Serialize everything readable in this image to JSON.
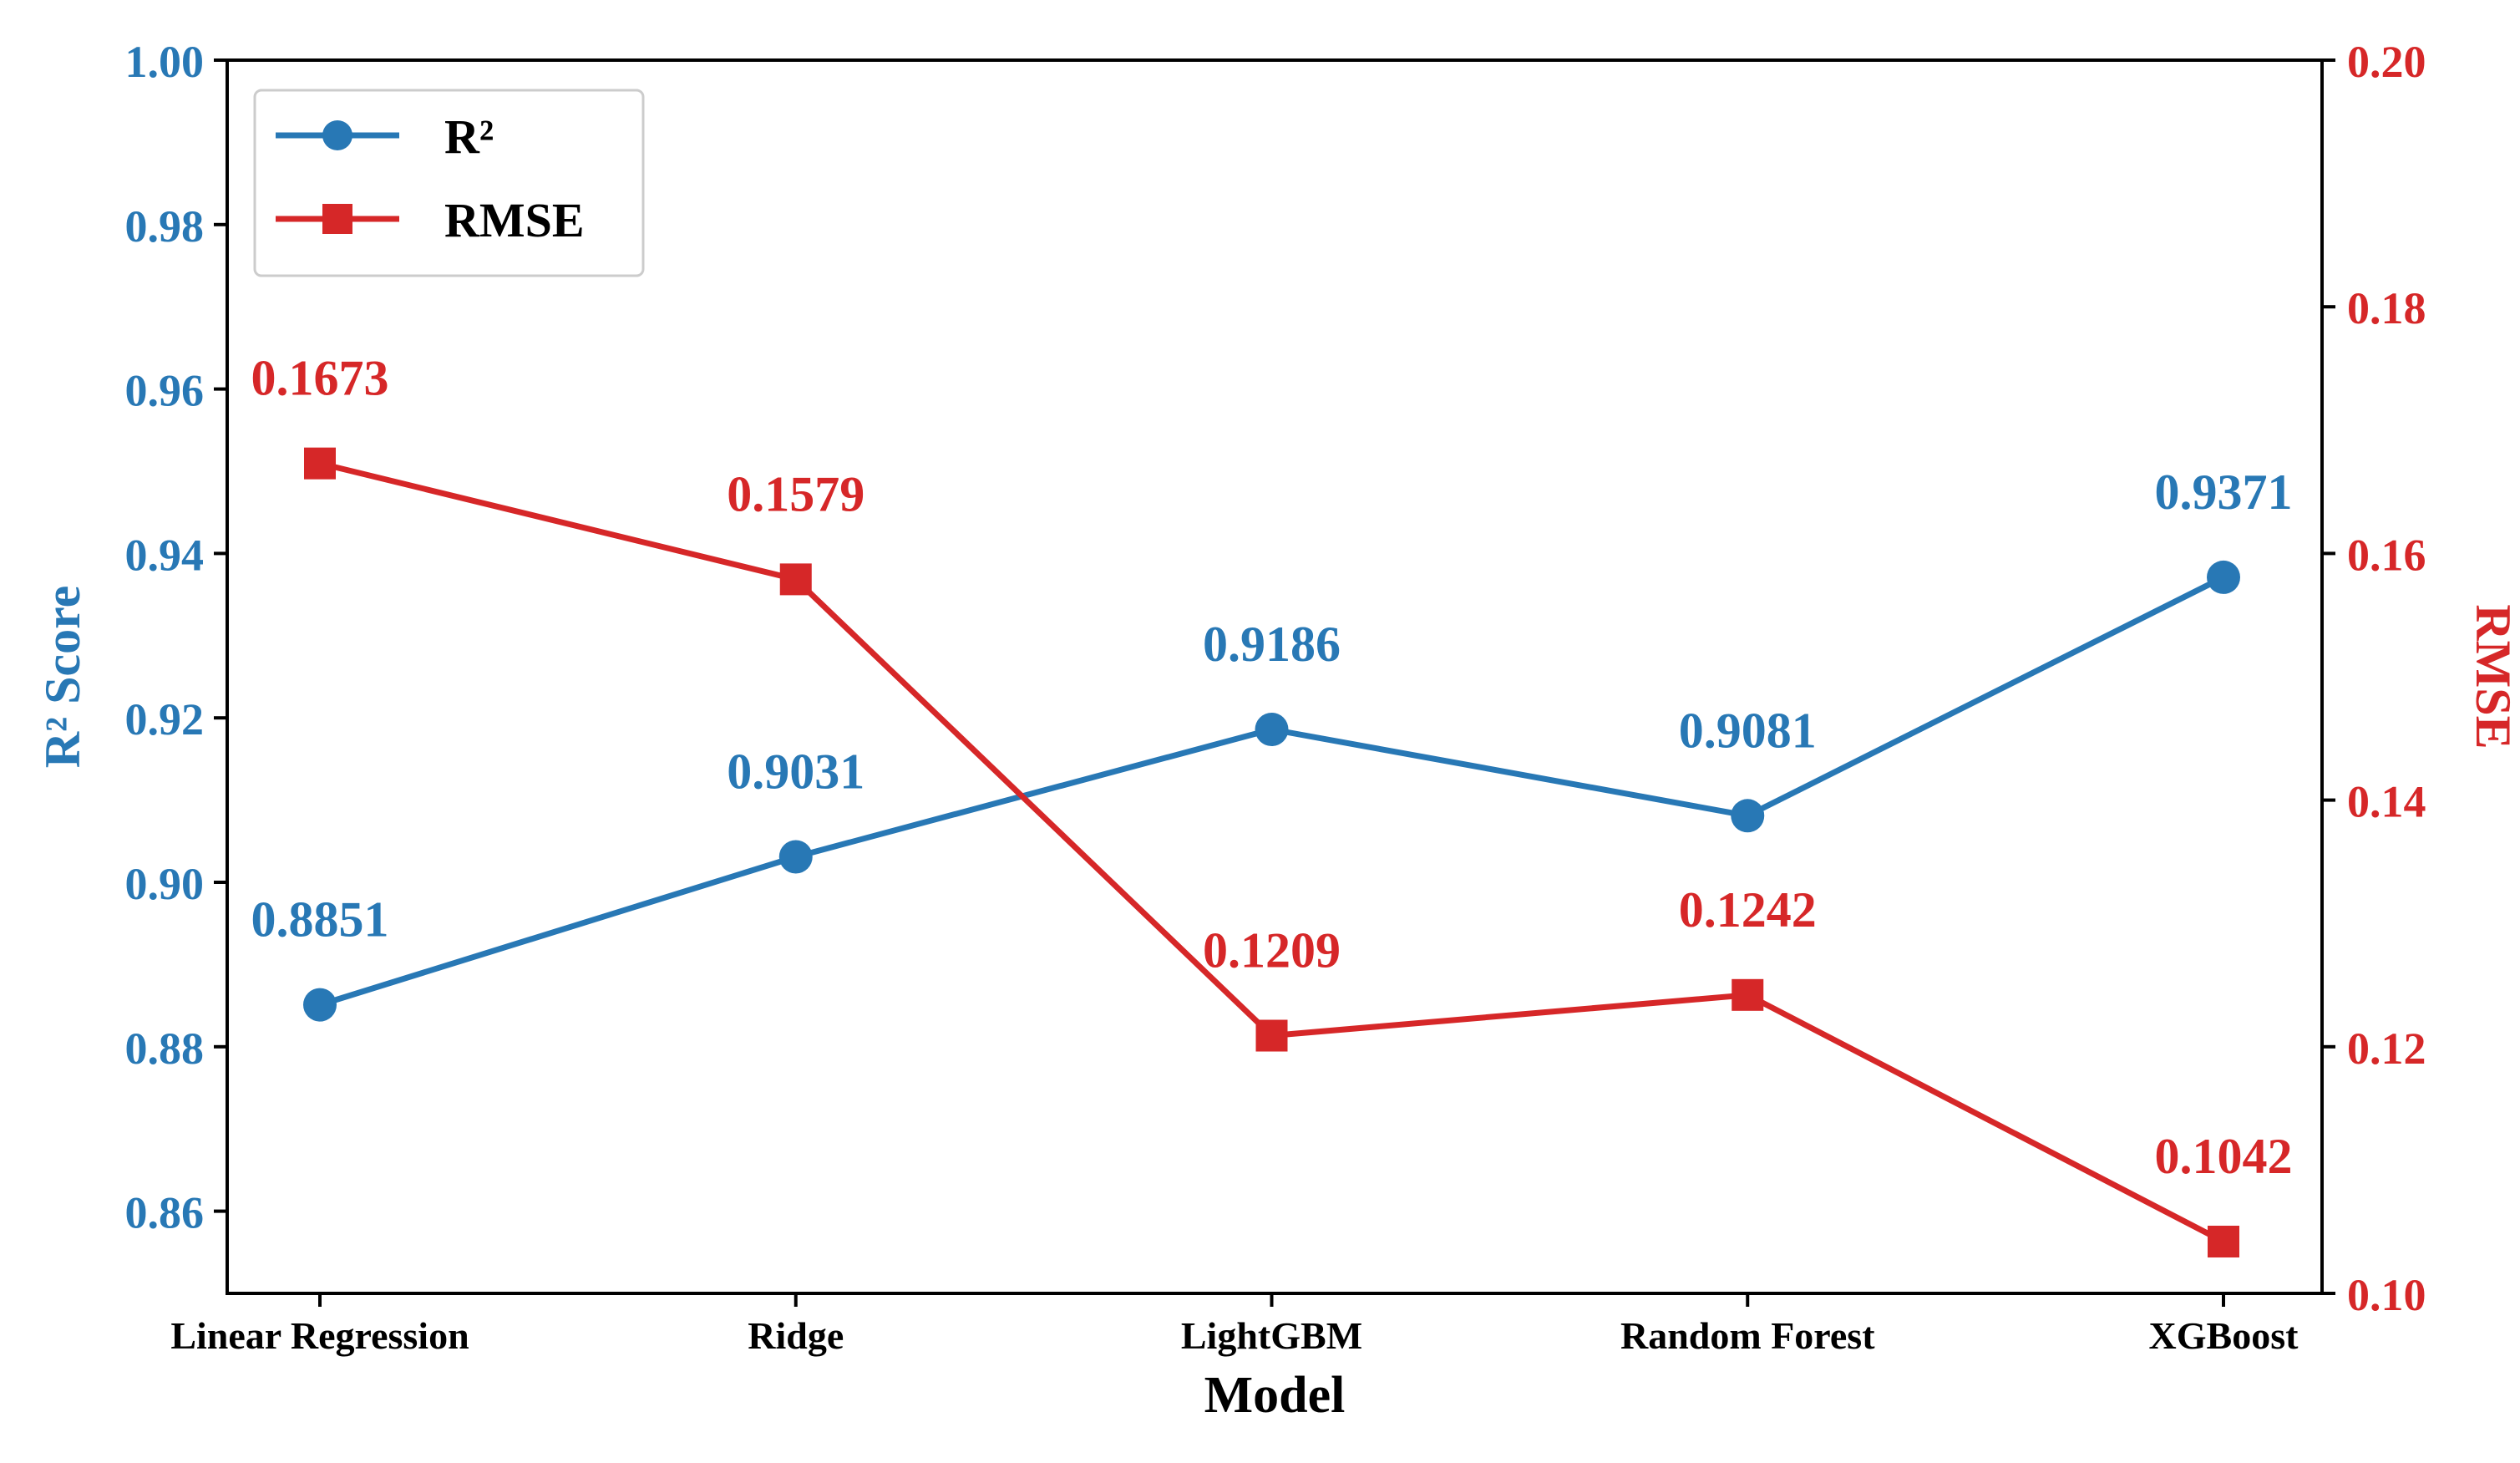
{
  "colors": {
    "r2": "#2878b5",
    "rmse": "#d62728",
    "axis": "#000000",
    "legend_border": "#cccccc"
  },
  "chart_data": {
    "type": "line",
    "xlabel": "Model",
    "categories": [
      "Linear Regression",
      "Ridge",
      "LightGBM",
      "Random Forest",
      "XGBoost"
    ],
    "series": [
      {
        "name": "R²",
        "axis": "left",
        "marker": "circle",
        "values": [
          0.8851,
          0.9031,
          0.9186,
          0.9081,
          0.9371
        ],
        "data_labels": [
          "0.8851",
          "0.9031",
          "0.9186",
          "0.9081",
          "0.9371"
        ]
      },
      {
        "name": "RMSE",
        "axis": "right",
        "marker": "square",
        "values": [
          0.1673,
          0.1579,
          0.1209,
          0.1242,
          0.1042
        ],
        "data_labels": [
          "0.1673",
          "0.1579",
          "0.1209",
          "0.1242",
          "0.1042"
        ]
      }
    ],
    "y_left": {
      "label": "R² Score",
      "lim": [
        0.85,
        1.0
      ],
      "ticks": [
        0.86,
        0.88,
        0.9,
        0.92,
        0.94,
        0.96,
        0.98,
        1.0
      ],
      "tick_labels": [
        "0.86",
        "0.88",
        "0.90",
        "0.92",
        "0.94",
        "0.96",
        "0.98",
        "1.00"
      ]
    },
    "y_right": {
      "label": "RMSE",
      "lim": [
        0.1,
        0.2
      ],
      "ticks": [
        0.1,
        0.12,
        0.14,
        0.16,
        0.18,
        0.2
      ],
      "tick_labels": [
        "0.10",
        "0.12",
        "0.14",
        "0.16",
        "0.18",
        "0.20"
      ]
    },
    "grid": false,
    "legend": {
      "position": "top-left",
      "entries": [
        "R²",
        "RMSE"
      ]
    }
  }
}
